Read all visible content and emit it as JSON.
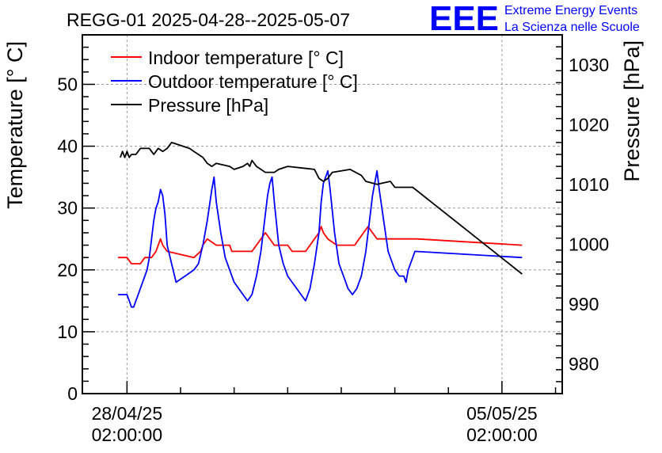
{
  "chart_data": {
    "type": "line",
    "title": "REGG-01 2025-04-28--2025-05-07",
    "ylabel": "Temperature [° C]",
    "y2label": "Pressure [hPa]",
    "x_ticks": [
      {
        "line1": "28/04/25",
        "line2": "02:00:00",
        "t": 0
      },
      {
        "line1": "05/05/25",
        "line2": "02:00:00",
        "t": 168
      }
    ],
    "x_unit": "hours since 28/04/25 02:00:00",
    "xlim": [
      -20,
      195
    ],
    "ylim": [
      0,
      58
    ],
    "y2lim": [
      975,
      1035
    ],
    "y_ticks": [
      0,
      10,
      20,
      30,
      40,
      50
    ],
    "y2_ticks": [
      980,
      990,
      1000,
      1010,
      1020,
      1030
    ],
    "grid": true,
    "legend_position": "top-left",
    "series": [
      {
        "name": "Indoor temperature [° C]",
        "color": "#ff0000",
        "axis": "left",
        "points": [
          [
            -4,
            22
          ],
          [
            0,
            22
          ],
          [
            2,
            21
          ],
          [
            6,
            21
          ],
          [
            8,
            22
          ],
          [
            11,
            22
          ],
          [
            13,
            23
          ],
          [
            14,
            24
          ],
          [
            15,
            25
          ],
          [
            16,
            24
          ],
          [
            18,
            23
          ],
          [
            30,
            22
          ],
          [
            33,
            23
          ],
          [
            34,
            24
          ],
          [
            36,
            25
          ],
          [
            40,
            24
          ],
          [
            46,
            24
          ],
          [
            47,
            23
          ],
          [
            56,
            23
          ],
          [
            58,
            24
          ],
          [
            60,
            25
          ],
          [
            62,
            26
          ],
          [
            64,
            25
          ],
          [
            66,
            24
          ],
          [
            72,
            24
          ],
          [
            74,
            23
          ],
          [
            80,
            23
          ],
          [
            82,
            24
          ],
          [
            84,
            25
          ],
          [
            86,
            26
          ],
          [
            87,
            27
          ],
          [
            88,
            26
          ],
          [
            90,
            25
          ],
          [
            94,
            24
          ],
          [
            102,
            24
          ],
          [
            104,
            25
          ],
          [
            106,
            26
          ],
          [
            108,
            27
          ],
          [
            110,
            26
          ],
          [
            112,
            25
          ],
          [
            130,
            25
          ],
          [
            177,
            24
          ]
        ]
      },
      {
        "name": "Outdoor temperature [° C]",
        "color": "#0000ff",
        "axis": "left",
        "points": [
          [
            -4,
            16
          ],
          [
            0,
            16
          ],
          [
            1,
            15
          ],
          [
            2,
            14
          ],
          [
            3,
            14
          ],
          [
            4,
            15
          ],
          [
            5,
            16
          ],
          [
            6,
            17
          ],
          [
            7,
            18
          ],
          [
            8,
            19
          ],
          [
            9,
            20
          ],
          [
            10,
            22
          ],
          [
            11,
            25
          ],
          [
            12,
            28
          ],
          [
            13,
            30
          ],
          [
            14,
            31
          ],
          [
            15,
            33
          ],
          [
            16,
            32
          ],
          [
            17,
            29
          ],
          [
            18,
            24
          ],
          [
            20,
            21
          ],
          [
            22,
            18
          ],
          [
            26,
            19
          ],
          [
            30,
            20
          ],
          [
            32,
            21
          ],
          [
            34,
            24
          ],
          [
            36,
            28
          ],
          [
            38,
            33
          ],
          [
            39,
            35
          ],
          [
            40,
            31
          ],
          [
            42,
            26
          ],
          [
            44,
            22
          ],
          [
            46,
            20
          ],
          [
            48,
            18
          ],
          [
            50,
            17
          ],
          [
            52,
            16
          ],
          [
            54,
            15
          ],
          [
            56,
            16
          ],
          [
            58,
            19
          ],
          [
            60,
            23
          ],
          [
            62,
            29
          ],
          [
            63,
            32
          ],
          [
            64,
            34
          ],
          [
            65,
            35
          ],
          [
            66,
            31
          ],
          [
            68,
            24
          ],
          [
            70,
            21
          ],
          [
            72,
            19
          ],
          [
            74,
            18
          ],
          [
            76,
            17
          ],
          [
            78,
            16
          ],
          [
            80,
            15
          ],
          [
            82,
            17
          ],
          [
            84,
            21
          ],
          [
            86,
            26
          ],
          [
            87,
            31
          ],
          [
            88,
            34
          ],
          [
            90,
            36
          ],
          [
            91,
            33
          ],
          [
            93,
            26
          ],
          [
            95,
            21
          ],
          [
            97,
            19
          ],
          [
            99,
            17
          ],
          [
            101,
            16
          ],
          [
            103,
            17
          ],
          [
            105,
            19
          ],
          [
            107,
            23
          ],
          [
            109,
            29
          ],
          [
            110,
            32
          ],
          [
            111,
            34
          ],
          [
            112,
            36
          ],
          [
            113,
            33
          ],
          [
            115,
            28
          ],
          [
            117,
            23
          ],
          [
            120,
            20
          ],
          [
            122,
            19
          ],
          [
            124,
            19
          ],
          [
            125,
            18
          ],
          [
            126,
            20
          ],
          [
            128,
            22
          ],
          [
            129,
            23
          ],
          [
            177,
            22
          ]
        ]
      },
      {
        "name": "Pressure [hPa]",
        "color": "#000000",
        "axis": "right",
        "points": [
          [
            -3,
            1014.5
          ],
          [
            -2,
            1015.5
          ],
          [
            -1,
            1014.5
          ],
          [
            0,
            1015.5
          ],
          [
            1,
            1014.5
          ],
          [
            2,
            1015
          ],
          [
            4,
            1015
          ],
          [
            5,
            1015.5
          ],
          [
            6,
            1016
          ],
          [
            10,
            1016
          ],
          [
            11,
            1015.5
          ],
          [
            12,
            1015
          ],
          [
            13,
            1015.5
          ],
          [
            14,
            1016
          ],
          [
            16,
            1015.5
          ],
          [
            18,
            1016
          ],
          [
            20,
            1017
          ],
          [
            28,
            1016
          ],
          [
            30,
            1015.5
          ],
          [
            32,
            1015
          ],
          [
            34,
            1014.5
          ],
          [
            36,
            1013.5
          ],
          [
            38,
            1013
          ],
          [
            40,
            1013.5
          ],
          [
            46,
            1013
          ],
          [
            48,
            1012.5
          ],
          [
            52,
            1013
          ],
          [
            54,
            1013.5
          ],
          [
            55,
            1013
          ],
          [
            56,
            1014
          ],
          [
            57,
            1013.5
          ],
          [
            58,
            1013
          ],
          [
            60,
            1012.5
          ],
          [
            62,
            1012
          ],
          [
            66,
            1012
          ],
          [
            68,
            1012.5
          ],
          [
            72,
            1013
          ],
          [
            84,
            1012.5
          ],
          [
            86,
            1011
          ],
          [
            88,
            1010.5
          ],
          [
            90,
            1011
          ],
          [
            92,
            1012
          ],
          [
            100,
            1012.5
          ],
          [
            105,
            1011.5
          ],
          [
            107,
            1010.5
          ],
          [
            112,
            1010
          ],
          [
            118,
            1010.5
          ],
          [
            120,
            1009.5
          ],
          [
            128,
            1009.5
          ],
          [
            177,
            995
          ]
        ]
      }
    ]
  },
  "branding": {
    "logo_text": "EEE",
    "line1": "Extreme Energy Events",
    "line2": "La Scienza nelle Scuole",
    "color": "#0000ff"
  }
}
